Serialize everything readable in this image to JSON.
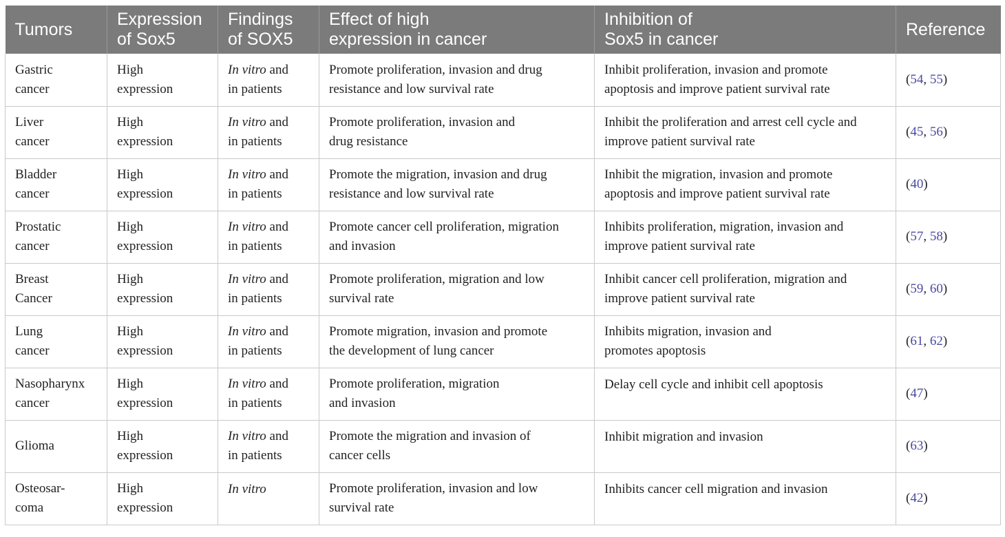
{
  "headers": [
    "Tumors",
    "Expression\nof Sox5",
    "Findings\nof SOX5",
    "Effect of high\nexpression in cancer",
    "Inhibition of\nSox5 in cancer",
    "Reference"
  ],
  "rows": [
    {
      "tumor": "Gastric\ncancer",
      "expression": "High\nexpression",
      "findings_italic": "In vitro",
      "findings_rest": " and\nin patients",
      "effect": "Promote proliferation, invasion and drug\nresistance and low survival rate",
      "inhibition": "Inhibit proliferation, invasion and promote\napoptosis and improve patient survival rate",
      "refs": [
        "54",
        "55"
      ]
    },
    {
      "tumor": "Liver\ncancer",
      "expression": "High\nexpression",
      "findings_italic": "In vitro",
      "findings_rest": " and\nin patients",
      "effect": "Promote proliferation, invasion and\ndrug resistance",
      "inhibition": "Inhibit the proliferation and arrest cell cycle and\nimprove patient survival rate",
      "refs": [
        "45",
        "56"
      ]
    },
    {
      "tumor": "Bladder\ncancer",
      "expression": "High\nexpression",
      "findings_italic": "In vitro",
      "findings_rest": " and\nin patients",
      "effect": "Promote the migration, invasion and drug\nresistance and low survival rate",
      "inhibition": "Inhibit the migration, invasion and promote\napoptosis and improve patient survival rate",
      "refs": [
        "40"
      ]
    },
    {
      "tumor": "Prostatic\ncancer",
      "expression": "High\nexpression",
      "findings_italic": "In vitro",
      "findings_rest": " and\nin patients",
      "effect": "Promote cancer cell proliferation, migration\nand invasion",
      "inhibition": "Inhibits proliferation, migration, invasion and\nimprove patient survival rate",
      "refs": [
        "57",
        "58"
      ]
    },
    {
      "tumor": "Breast\nCancer",
      "expression": "High\nexpression",
      "findings_italic": "In vitro",
      "findings_rest": " and\nin patients",
      "effect": "Promote proliferation, migration and low\nsurvival rate",
      "inhibition": "Inhibit cancer cell proliferation, migration and\nimprove patient survival rate",
      "refs": [
        "59",
        "60"
      ]
    },
    {
      "tumor": "Lung\ncancer",
      "expression": "High\nexpression",
      "findings_italic": "In vitro",
      "findings_rest": " and\nin patients",
      "effect": "Promote migration, invasion and promote\nthe development of lung cancer",
      "inhibition": "Inhibits migration, invasion and\npromotes apoptosis",
      "refs": [
        "61",
        "62"
      ]
    },
    {
      "tumor": "Nasopharynx\ncancer",
      "expression": "High\nexpression",
      "findings_italic": "In vitro",
      "findings_rest": " and\nin patients",
      "effect": "Promote proliferation, migration\nand invasion",
      "inhibition": "Delay cell cycle and inhibit cell apoptosis",
      "inhibition_top": true,
      "refs": [
        "47"
      ]
    },
    {
      "tumor": "Glioma",
      "expression": "High\nexpression",
      "findings_italic": "In vitro",
      "findings_rest": " and\nin patients",
      "effect": "Promote the migration and invasion of\ncancer cells",
      "inhibition": "Inhibit migration and invasion",
      "inhibition_top": true,
      "refs": [
        "63"
      ]
    },
    {
      "tumor": "Osteosar-\ncoma",
      "expression": "High\nexpression",
      "findings_italic": "In vitro",
      "findings_rest": "",
      "findings_top": true,
      "effect": "Promote proliferation, invasion and low\nsurvival rate",
      "inhibition": "Inhibits cancer cell migration and invasion",
      "inhibition_top": true,
      "refs": [
        "42"
      ]
    }
  ]
}
